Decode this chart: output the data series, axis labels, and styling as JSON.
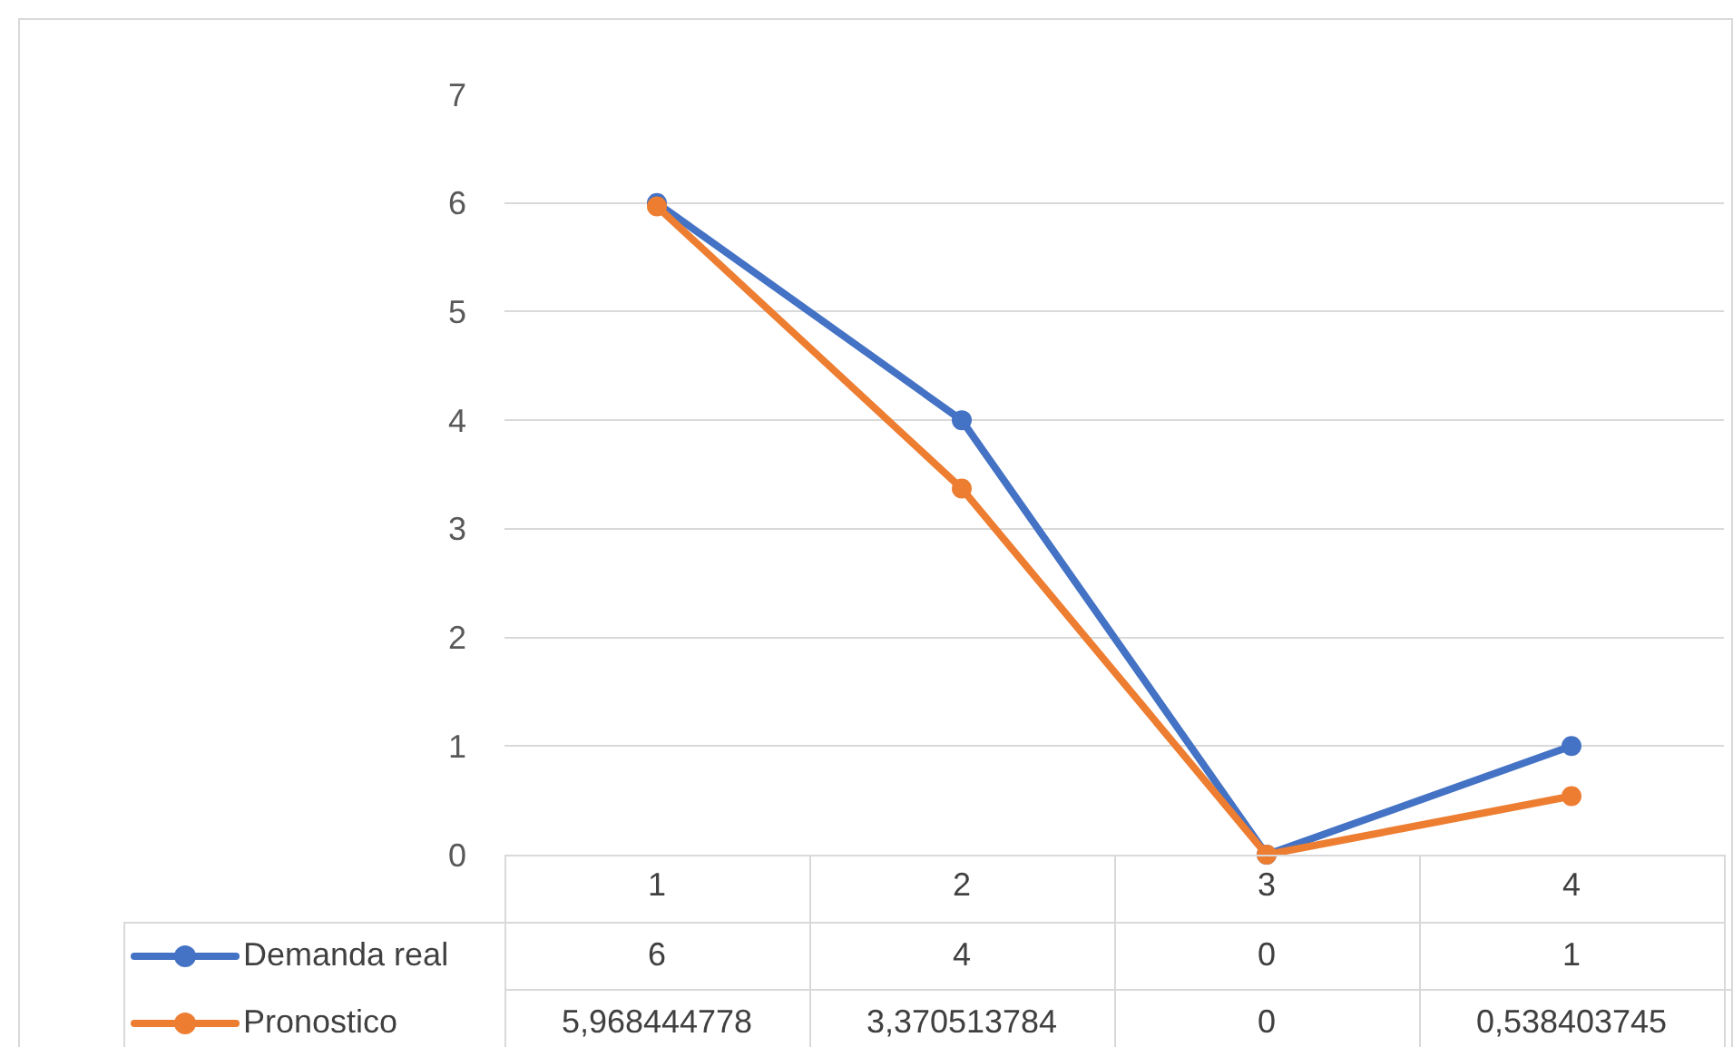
{
  "chart_data": {
    "type": "line",
    "categories": [
      "1",
      "2",
      "3",
      "4"
    ],
    "series": [
      {
        "name": "Demanda real",
        "color": "#4472c4",
        "values": [
          6,
          4,
          0,
          1
        ],
        "value_labels": [
          "6",
          "4",
          "0",
          "1"
        ]
      },
      {
        "name": "Pronostico",
        "color": "#ed7d31",
        "values": [
          5.968444778,
          3.370513784,
          0,
          0.538403745
        ],
        "value_labels": [
          "5,968444778",
          "3,370513784",
          "0",
          "0,538403745"
        ]
      }
    ],
    "ylim": [
      0,
      7
    ],
    "yticks": [
      0,
      1,
      2,
      3,
      4,
      5,
      6,
      7
    ],
    "grid": "y",
    "legend": "bottom",
    "marker": "circle",
    "line_style": "solid"
  }
}
